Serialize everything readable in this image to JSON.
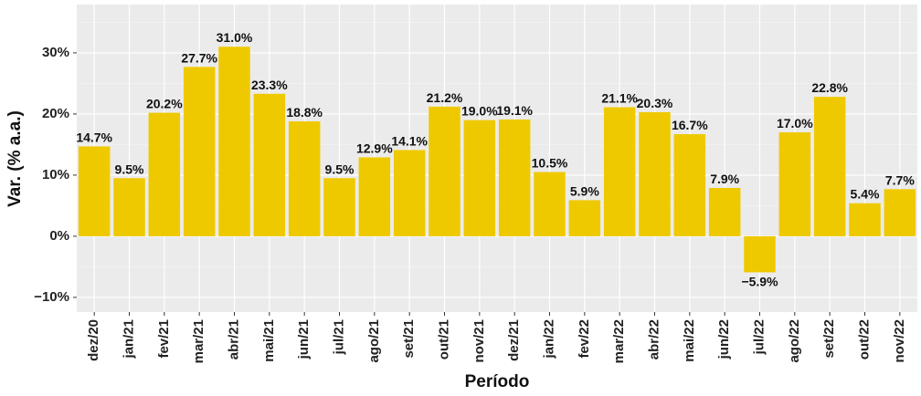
{
  "chart_data": {
    "type": "bar",
    "x_label": "Período",
    "y_label": "Var. (% a.a.)",
    "categories": [
      "dez/20",
      "jan/21",
      "fev/21",
      "mar/21",
      "abr/21",
      "mai/21",
      "jun/21",
      "jul/21",
      "ago/21",
      "set/21",
      "out/21",
      "nov/21",
      "dez/21",
      "jan/22",
      "fev/22",
      "mar/22",
      "abr/22",
      "mai/22",
      "jun/22",
      "jul/22",
      "ago/22",
      "set/22",
      "out/22",
      "nov/22"
    ],
    "values": [
      14.7,
      9.5,
      20.2,
      27.7,
      31.0,
      23.3,
      18.8,
      9.5,
      12.9,
      14.1,
      21.2,
      19.0,
      19.1,
      10.5,
      5.9,
      21.1,
      20.3,
      16.7,
      7.9,
      -5.9,
      17.0,
      22.8,
      5.4,
      7.7
    ],
    "value_labels": [
      "14.7%",
      "9.5%",
      "20.2%",
      "27.7%",
      "31.0%",
      "23.3%",
      "18.8%",
      "9.5%",
      "12.9%",
      "14.1%",
      "21.2%",
      "19.0%",
      "19.1%",
      "10.5%",
      "5.9%",
      "21.1%",
      "20.3%",
      "16.7%",
      "7.9%",
      "−5.9%",
      "17.0%",
      "22.8%",
      "5.4%",
      "7.7%"
    ],
    "color": "#efc900",
    "ylim": [
      -12.4,
      37.9
    ],
    "yticks": [
      {
        "value": -10,
        "label": "−10%"
      },
      {
        "value": 0,
        "label": "0%"
      },
      {
        "value": 10,
        "label": "10%"
      },
      {
        "value": 20,
        "label": "20%"
      },
      {
        "value": 30,
        "label": "30%"
      }
    ],
    "grid": true
  }
}
